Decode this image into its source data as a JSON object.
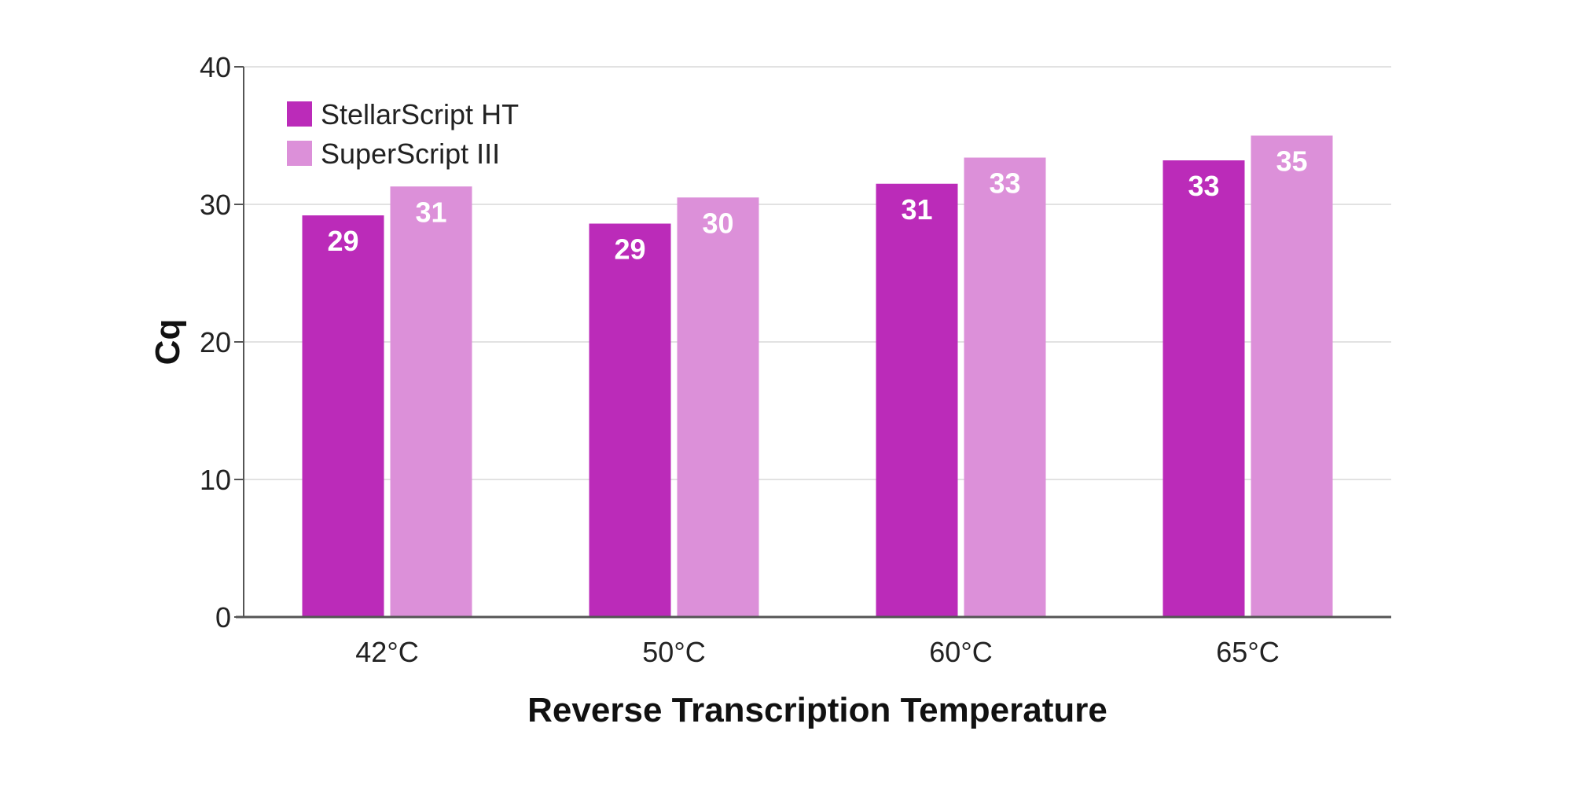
{
  "chart_data": {
    "type": "bar",
    "title": "",
    "xlabel": "Reverse Transcription Temperature",
    "ylabel": "Cq",
    "categories": [
      "42°C",
      "50°C",
      "60°C",
      "65°C"
    ],
    "ylim": [
      0,
      40
    ],
    "yticks": [
      0,
      10,
      20,
      30,
      40
    ],
    "grid": true,
    "legend_position": "top-left",
    "series": [
      {
        "name": "StellarScript HT",
        "color": "#bb2bb9",
        "values": [
          29.2,
          28.6,
          31.5,
          33.2
        ],
        "labels": [
          "29",
          "29",
          "31",
          "33"
        ]
      },
      {
        "name": "SuperScript III",
        "color": "#dc90d9",
        "values": [
          31.3,
          30.5,
          33.4,
          35.0
        ],
        "labels": [
          "31",
          "30",
          "33",
          "35"
        ]
      }
    ]
  }
}
